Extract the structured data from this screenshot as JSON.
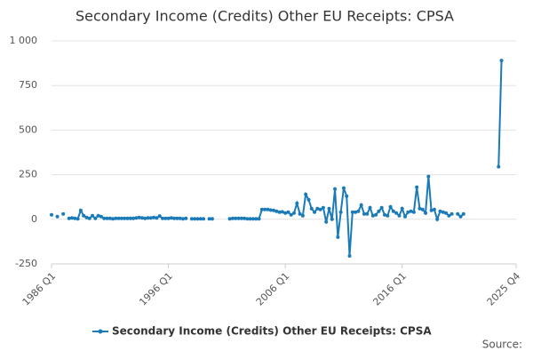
{
  "chart_data": {
    "type": "line",
    "title": "Secondary Income (Credits) Other EU Receipts: CPSA",
    "source": "Source:",
    "categories": [
      "1986 Q1",
      null,
      null,
      null,
      null,
      null,
      null,
      null,
      null,
      null,
      null,
      null,
      null,
      null,
      null,
      null,
      null,
      null,
      null,
      null,
      null,
      null,
      null,
      null,
      null,
      null,
      null,
      null,
      null,
      null,
      null,
      null,
      null,
      null,
      null,
      null,
      null,
      null,
      null,
      null,
      "1996 Q1",
      null,
      null,
      null,
      null,
      null,
      null,
      null,
      null,
      null,
      null,
      null,
      null,
      null,
      null,
      null,
      null,
      null,
      null,
      null,
      null,
      null,
      null,
      null,
      null,
      null,
      null,
      null,
      null,
      null,
      null,
      null,
      null,
      null,
      null,
      null,
      null,
      null,
      null,
      null,
      "2006 Q1",
      null,
      null,
      null,
      null,
      null,
      null,
      null,
      null,
      null,
      null,
      null,
      null,
      null,
      null,
      null,
      null,
      null,
      null,
      null,
      null,
      null,
      null,
      null,
      null,
      null,
      null,
      null,
      null,
      null,
      null,
      null,
      null,
      null,
      null,
      null,
      null,
      null,
      null,
      null,
      "2016 Q1",
      null,
      null,
      null,
      null,
      null,
      null,
      null,
      null,
      null,
      null,
      null,
      null,
      null,
      null,
      null,
      null,
      null,
      null,
      null,
      null,
      null,
      null,
      null,
      null,
      null,
      null,
      null,
      null,
      null,
      null,
      null,
      null,
      null,
      null,
      null,
      null,
      null,
      null,
      "2025 Q4"
    ],
    "series": [
      {
        "name": "Secondary Income (Credits) Other EU Receipts: CPSA",
        "color": "#1a7bb8",
        "values": [
          25,
          null,
          15,
          null,
          30,
          null,
          5,
          8,
          5,
          3,
          50,
          20,
          10,
          5,
          20,
          5,
          20,
          15,
          5,
          5,
          5,
          3,
          5,
          5,
          5,
          5,
          5,
          5,
          5,
          8,
          10,
          8,
          5,
          8,
          8,
          10,
          8,
          18,
          5,
          5,
          5,
          8,
          5,
          5,
          5,
          3,
          5,
          null,
          3,
          3,
          3,
          3,
          3,
          null,
          3,
          3,
          null,
          null,
          null,
          null,
          null,
          3,
          5,
          5,
          5,
          5,
          5,
          3,
          3,
          3,
          3,
          3,
          55,
          55,
          55,
          52,
          50,
          45,
          40,
          42,
          35,
          40,
          25,
          35,
          90,
          30,
          20,
          140,
          110,
          60,
          40,
          60,
          55,
          65,
          -15,
          60,
          0,
          170,
          -100,
          40,
          175,
          130,
          -205,
          40,
          40,
          45,
          80,
          30,
          30,
          65,
          20,
          25,
          45,
          65,
          25,
          20,
          70,
          45,
          35,
          20,
          60,
          15,
          40,
          45,
          40,
          180,
          60,
          55,
          35,
          240,
          50,
          55,
          0,
          45,
          40,
          35,
          20,
          30,
          null,
          30,
          15,
          30,
          null,
          null,
          null,
          null,
          null,
          null,
          null,
          null,
          null,
          null,
          null,
          295,
          890,
          null,
          null,
          null,
          null,
          null
        ]
      }
    ],
    "ylim": [
      -250,
      1000
    ],
    "yticks": [
      -250,
      0,
      250,
      500,
      750,
      {
        "value": 1000,
        "label": "1 000"
      }
    ],
    "grid": true,
    "legend": "bottom"
  }
}
